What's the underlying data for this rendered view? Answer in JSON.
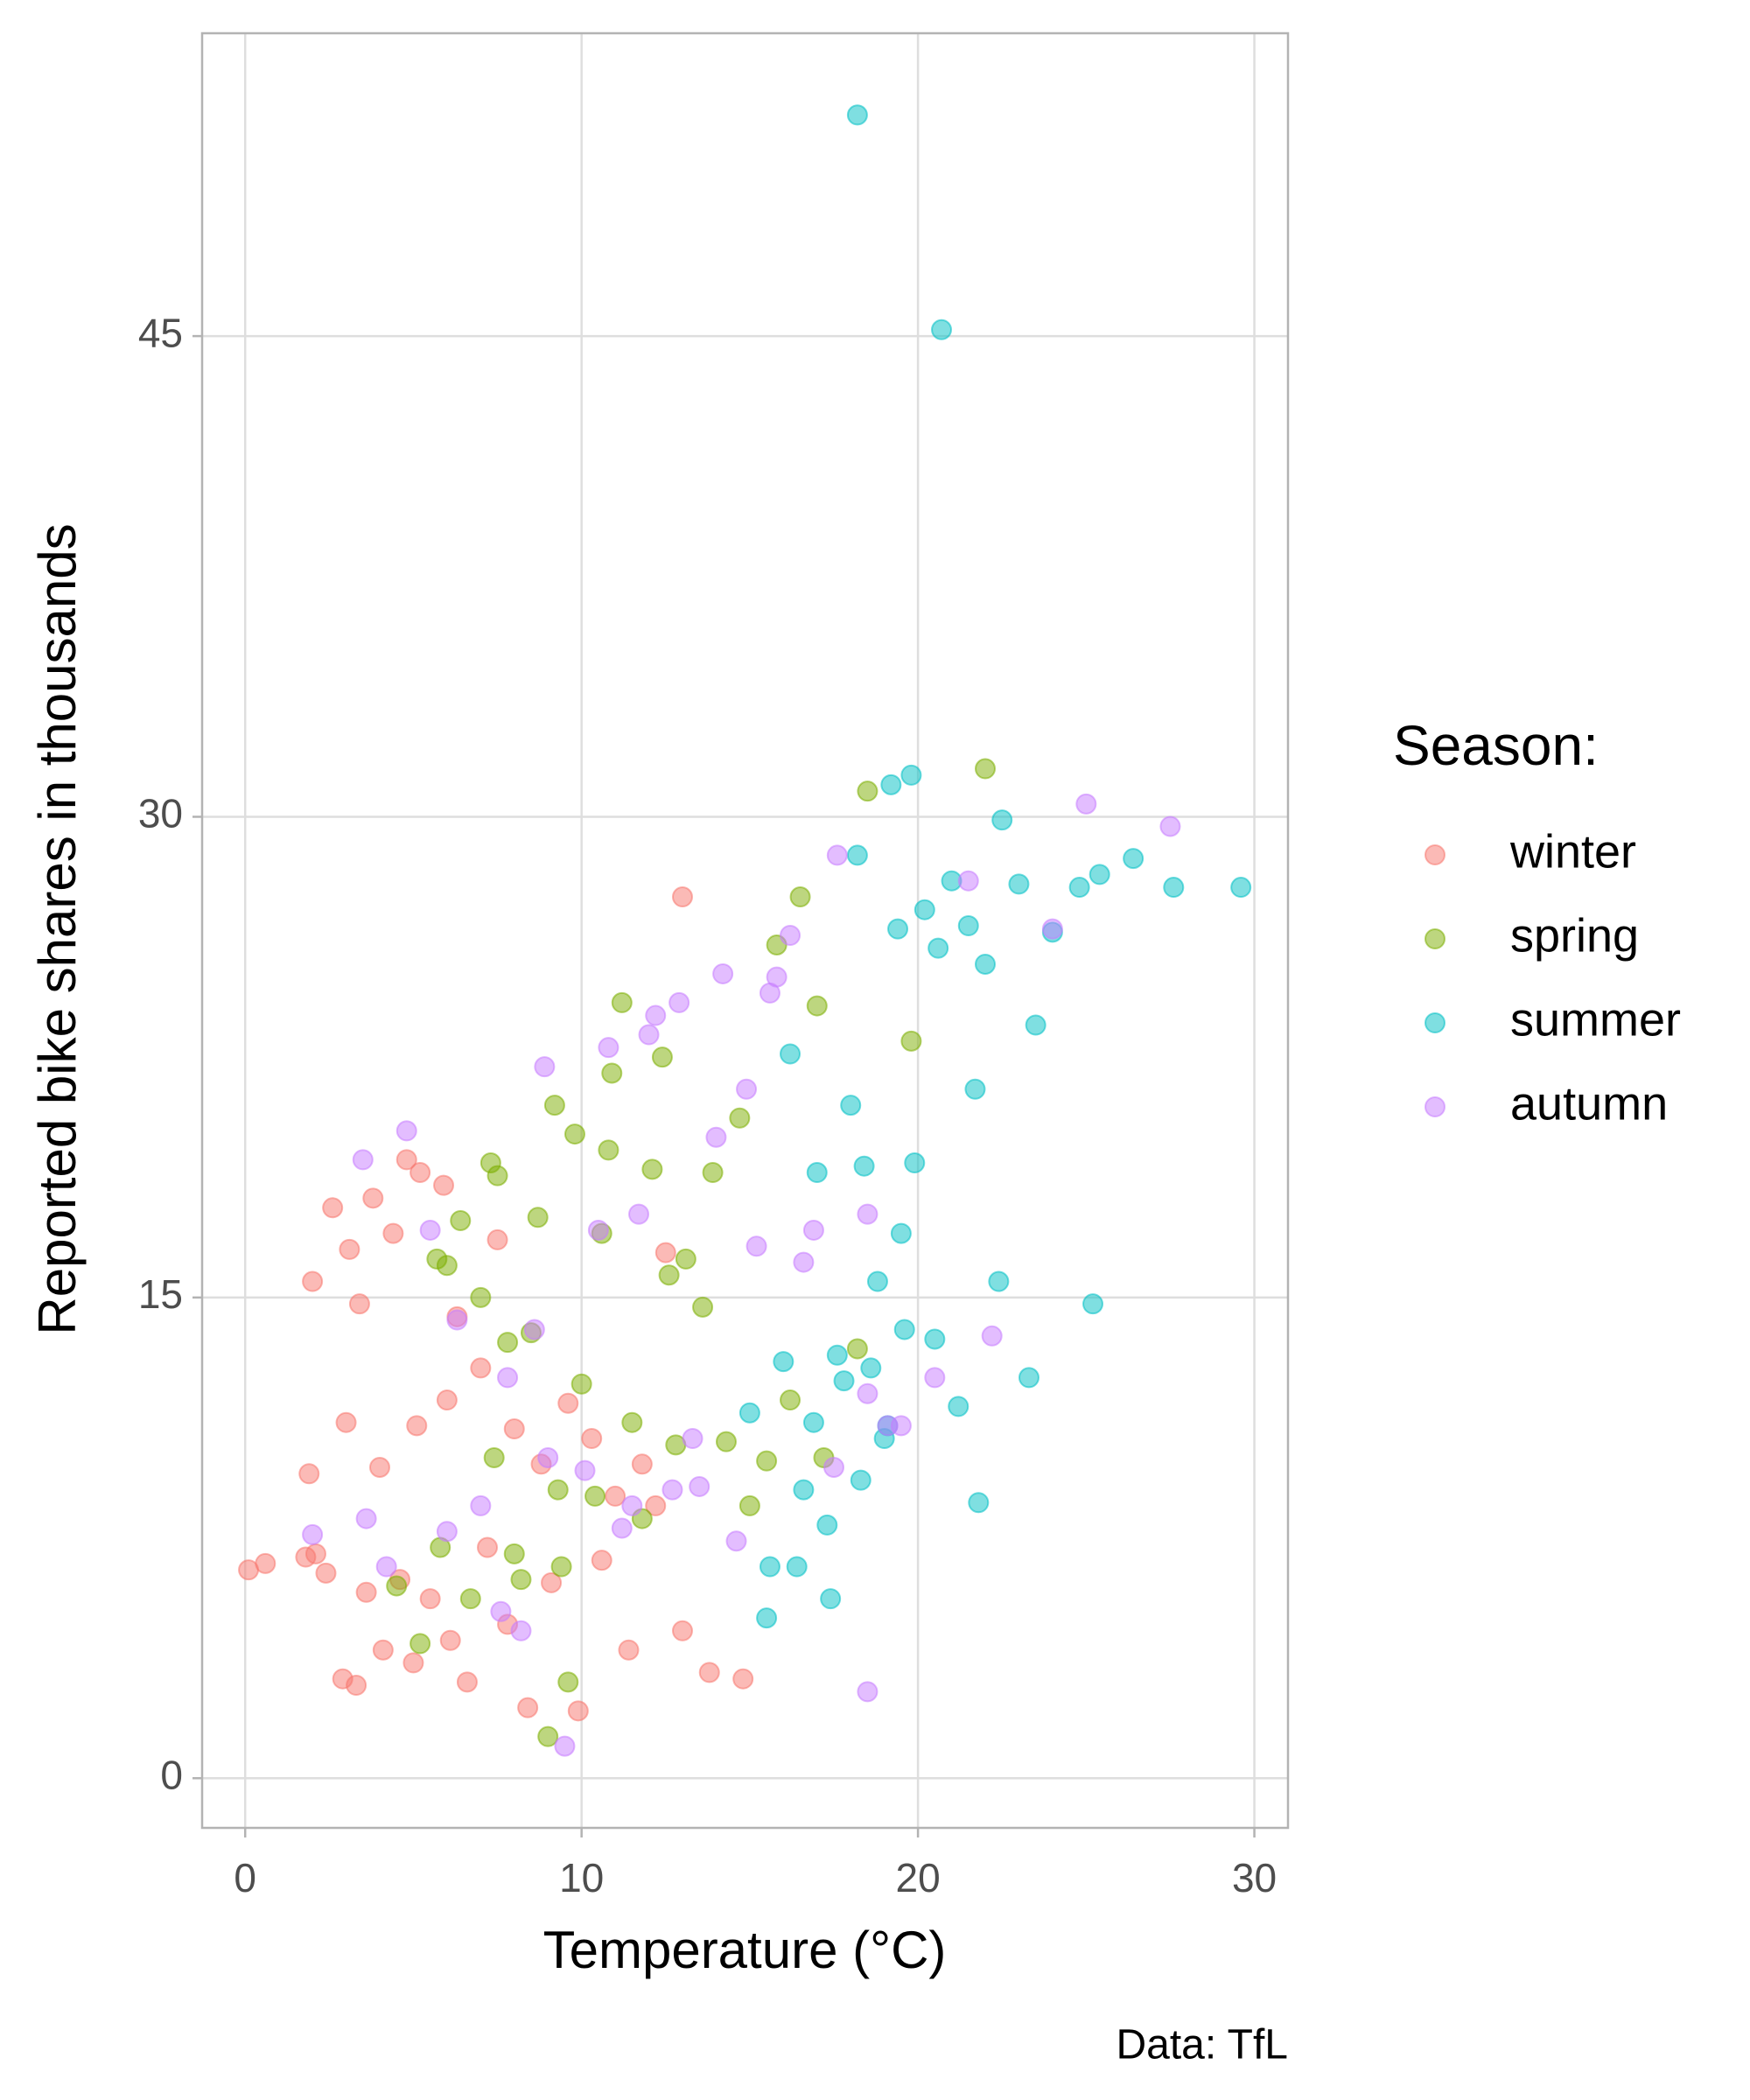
{
  "chart_data": {
    "type": "scatter",
    "x_label": "Temperature (°C)",
    "y_label": "Reported bike shares in thousands",
    "caption": "Data: TfL",
    "legend_title": "Season:",
    "legend_position": "right",
    "grid": true,
    "xlim": [
      -1.28,
      31.0
    ],
    "ylim": [
      -1.55,
      54.45
    ],
    "xticks": [
      0,
      10,
      20,
      30
    ],
    "yticks": [
      0,
      15,
      30,
      45
    ],
    "series": [
      {
        "name": "winter",
        "color": "#F8766D",
        "x": [
          0.1,
          0.6,
          1.8,
          2.1,
          2.4,
          2.9,
          3.3,
          3.6,
          4.1,
          4.6,
          5.0,
          5.5,
          6.1,
          6.6,
          7.2,
          7.8,
          8.4,
          9.1,
          9.9,
          10.6,
          11.4,
          12.2,
          13.0,
          13.8,
          14.8,
          2.0,
          2.6,
          3.1,
          3.8,
          4.4,
          5.2,
          5.9,
          6.3,
          7.0,
          7.5,
          8.0,
          8.8,
          9.6,
          10.3,
          11.0,
          11.8,
          12.5,
          13.0,
          1.9,
          3.0,
          4.0,
          5.1,
          6.0,
          4.8,
          3.4
        ],
        "values": [
          6.5,
          6.7,
          6.9,
          7.0,
          6.4,
          3.1,
          2.9,
          5.8,
          4.0,
          6.2,
          3.6,
          5.6,
          4.3,
          3.0,
          7.2,
          4.8,
          2.2,
          6.1,
          2.1,
          6.8,
          4.0,
          8.5,
          4.6,
          3.3,
          3.1,
          15.5,
          17.8,
          16.5,
          18.1,
          17.0,
          18.9,
          18.5,
          14.4,
          12.8,
          16.8,
          10.9,
          9.8,
          11.7,
          10.6,
          8.8,
          9.8,
          16.4,
          27.5,
          9.5,
          11.1,
          9.7,
          11.0,
          11.8,
          19.3,
          14.8
        ]
      },
      {
        "name": "spring",
        "color": "#7CAE00",
        "x": [
          4.5,
          5.2,
          5.8,
          6.4,
          7.0,
          7.5,
          8.0,
          8.5,
          9.0,
          9.3,
          9.8,
          10.4,
          10.9,
          11.5,
          12.1,
          12.8,
          13.6,
          14.3,
          15.0,
          15.8,
          16.5,
          17.2,
          18.5,
          19.8,
          22.0,
          6.0,
          6.7,
          7.3,
          7.8,
          8.2,
          8.7,
          9.2,
          9.6,
          10.0,
          10.6,
          11.2,
          11.8,
          12.4,
          13.1,
          13.9,
          14.7,
          15.5,
          16.2,
          17.0,
          5.7,
          7.4,
          9.4,
          10.8,
          12.6,
          18.2
        ],
        "values": [
          6.0,
          4.2,
          7.2,
          17.4,
          15.0,
          18.8,
          7.0,
          13.9,
          1.3,
          9.0,
          20.1,
          8.8,
          22.0,
          11.1,
          19.0,
          10.4,
          14.7,
          10.5,
          8.5,
          26.0,
          27.5,
          10.0,
          30.8,
          23.0,
          31.5,
          16.0,
          5.6,
          19.2,
          13.6,
          6.2,
          17.5,
          21.0,
          3.0,
          12.3,
          17.0,
          24.2,
          8.1,
          22.5,
          16.2,
          18.9,
          20.6,
          9.9,
          11.8,
          24.1,
          16.2,
          10.0,
          6.6,
          19.6,
          15.7,
          13.4
        ]
      },
      {
        "name": "summer",
        "color": "#00BFC4",
        "x": [
          15.0,
          15.5,
          16.0,
          16.4,
          16.9,
          17.3,
          17.8,
          18.2,
          18.6,
          19.0,
          19.4,
          19.8,
          20.2,
          20.6,
          21.0,
          21.5,
          22.0,
          22.5,
          23.0,
          23.5,
          24.0,
          24.8,
          25.4,
          26.4,
          27.6,
          29.6,
          18.2,
          20.7,
          19.2,
          19.6,
          18.4,
          16.2,
          17.0,
          17.6,
          18.0,
          18.8,
          19.5,
          20.5,
          21.2,
          21.8,
          22.4,
          23.3,
          25.2,
          15.6,
          16.6,
          17.4,
          18.3,
          19.1,
          19.9,
          21.7
        ],
        "values": [
          11.4,
          5.0,
          13.0,
          6.6,
          11.1,
          7.9,
          12.4,
          28.8,
          12.8,
          10.6,
          26.5,
          31.3,
          27.1,
          25.9,
          28.0,
          26.6,
          25.4,
          29.9,
          27.9,
          23.5,
          26.4,
          27.8,
          28.2,
          28.7,
          27.8,
          27.8,
          51.9,
          45.2,
          31.0,
          14.0,
          19.1,
          22.6,
          18.9,
          13.2,
          21.0,
          15.5,
          17.0,
          13.7,
          11.6,
          8.6,
          15.5,
          12.5,
          14.8,
          6.6,
          9.0,
          5.6,
          9.3,
          11.0,
          19.2,
          21.5
        ]
      },
      {
        "name": "autumn",
        "color": "#C77CFF",
        "x": [
          2.0,
          3.5,
          4.2,
          4.8,
          5.5,
          6.3,
          7.0,
          7.6,
          8.2,
          8.9,
          9.5,
          10.1,
          10.8,
          11.5,
          12.2,
          12.9,
          13.5,
          14.2,
          14.9,
          15.6,
          16.2,
          16.9,
          17.6,
          18.5,
          19.5,
          20.5,
          21.5,
          22.2,
          24.0,
          25.0,
          27.5,
          9.0,
          10.5,
          11.2,
          12.0,
          12.7,
          13.3,
          14.0,
          14.6,
          15.2,
          15.8,
          16.6,
          17.5,
          18.5,
          19.1,
          8.6,
          11.7,
          6.0,
          7.8,
          3.6,
          18.5
        ],
        "values": [
          7.6,
          19.3,
          6.6,
          20.2,
          17.1,
          14.3,
          8.5,
          5.2,
          4.6,
          22.2,
          1.0,
          9.6,
          22.8,
          8.5,
          23.8,
          24.2,
          9.1,
          25.1,
          21.5,
          24.5,
          26.3,
          17.1,
          28.8,
          17.6,
          11.0,
          12.5,
          28.0,
          13.8,
          26.5,
          30.4,
          29.7,
          10.0,
          17.1,
          7.8,
          23.2,
          9.0,
          10.6,
          20.0,
          7.4,
          16.6,
          25.0,
          16.1,
          9.7,
          2.7,
          11.0,
          14.0,
          17.6,
          7.7,
          12.5,
          8.1,
          12.0
        ]
      }
    ]
  }
}
